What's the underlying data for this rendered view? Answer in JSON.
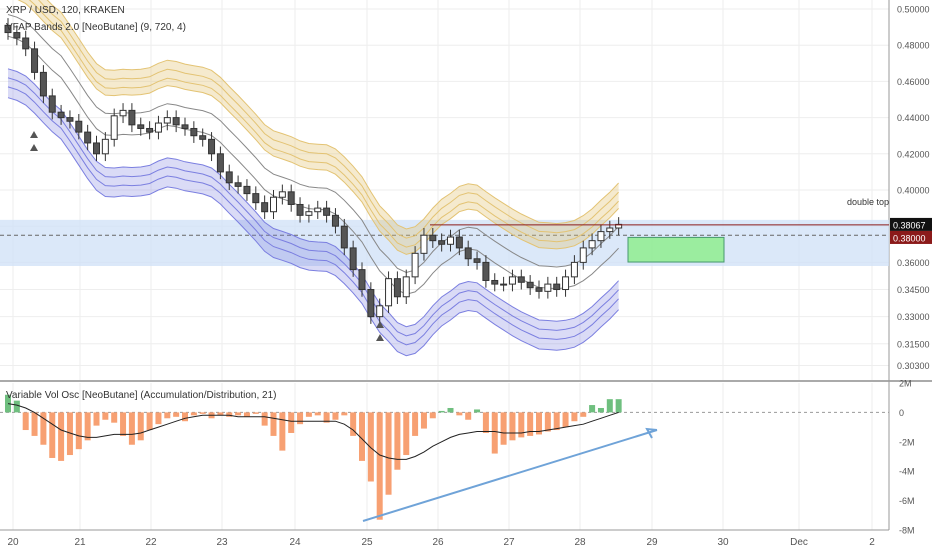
{
  "header": {
    "symbol_line": "XRP / USD, 120, KRAKEN",
    "indicator_line": "VFAP Bands 2.0 [NeoButane] (9, 720, 4)",
    "oscillator_line": "Variable Vol Osc [NeoButane] (Accumulation/Distribution, 21)"
  },
  "colors": {
    "up": "#53b987",
    "down": "#eb4d5c",
    "candle_body_down": "#555555",
    "upper_band": "#e3c373",
    "lower_band": "#7b7fe0",
    "zone": "#cfe0f7",
    "target_box": "#90ee90",
    "vol_neg": "#f7a072",
    "vol_pos": "#6fbf7f",
    "trend_line": "#6fa3d8",
    "price_line": "#8b1a1a"
  },
  "chart_data": [
    {
      "type": "candlestick",
      "title": "XRP / USD, 120, KRAKEN",
      "ylim": [
        0.295,
        0.505
      ],
      "y_ticks": [
        "0.50000",
        "0.48000",
        "0.46000",
        "0.44000",
        "0.42000",
        "0.40000",
        "0.38000",
        "0.36000",
        "0.34500",
        "0.33000",
        "0.31500",
        "0.30300"
      ],
      "x_ticks": [
        "20",
        "21",
        "22",
        "23",
        "24",
        "25",
        "26",
        "27",
        "28",
        "29",
        "30",
        "Dec",
        "2"
      ],
      "annotations": {
        "label": "double top",
        "price_label": "0.38067",
        "level_label": "0.38000"
      },
      "closes": [
        0.487,
        0.484,
        0.478,
        0.465,
        0.452,
        0.443,
        0.44,
        0.438,
        0.432,
        0.426,
        0.42,
        0.428,
        0.441,
        0.444,
        0.436,
        0.434,
        0.432,
        0.437,
        0.44,
        0.436,
        0.434,
        0.43,
        0.428,
        0.42,
        0.41,
        0.404,
        0.402,
        0.398,
        0.393,
        0.388,
        0.396,
        0.399,
        0.392,
        0.386,
        0.388,
        0.39,
        0.386,
        0.38,
        0.368,
        0.356,
        0.345,
        0.33,
        0.336,
        0.351,
        0.341,
        0.352,
        0.365,
        0.375,
        0.372,
        0.37,
        0.374,
        0.368,
        0.362,
        0.36,
        0.35,
        0.348,
        0.348,
        0.352,
        0.349,
        0.346,
        0.344,
        0.348,
        0.345,
        0.352,
        0.36,
        0.368,
        0.372,
        0.377,
        0.379,
        0.381
      ]
    },
    {
      "type": "bar",
      "title": "Variable Vol Osc [NeoButane] (Accumulation/Distribution, 21)",
      "ylim": [
        -8,
        2
      ],
      "y_ticks": [
        "2M",
        "0",
        "-2M",
        "-4M",
        "-6M",
        "-8M"
      ],
      "values": [
        1.2,
        0.8,
        -1.2,
        -1.6,
        -2.2,
        -3.1,
        -3.3,
        -2.9,
        -2.5,
        -1.9,
        -0.9,
        -0.5,
        -0.7,
        -1.6,
        -2.2,
        -1.9,
        -1.2,
        -0.8,
        -0.4,
        -0.3,
        -0.6,
        -0.2,
        -0.1,
        -0.4,
        -0.2,
        -0.3,
        -0.2,
        -0.3,
        -0.1,
        -0.9,
        -1.6,
        -2.6,
        -1.4,
        -0.8,
        -0.3,
        -0.2,
        -0.7,
        -0.5,
        -0.2,
        -1.6,
        -3.3,
        -4.7,
        -7.3,
        -5.6,
        -3.9,
        -2.9,
        -1.6,
        -1.1,
        -0.4,
        0.1,
        0.3,
        -0.2,
        -0.5,
        0.2,
        -1.4,
        -2.8,
        -2.2,
        -1.9,
        -1.7,
        -1.6,
        -1.5,
        -1.3,
        -1.2,
        -1.0,
        -0.6,
        -0.3,
        0.5,
        0.3,
        0.9,
        0.9
      ],
      "signal": [
        0.6,
        0.5,
        0.3,
        0.0,
        -0.4,
        -0.8,
        -1.2,
        -1.4,
        -1.6,
        -1.7,
        -1.7,
        -1.6,
        -1.5,
        -1.5,
        -1.5,
        -1.4,
        -1.2,
        -1.0,
        -0.8,
        -0.6,
        -0.4,
        -0.3,
        -0.2,
        -0.2,
        -0.2,
        -0.2,
        -0.3,
        -0.3,
        -0.3,
        -0.3,
        -0.4,
        -0.5,
        -0.6,
        -0.6,
        -0.6,
        -0.6,
        -0.6,
        -0.6,
        -0.8,
        -1.2,
        -1.8,
        -2.4,
        -2.9,
        -3.1,
        -3.2,
        -3.2,
        -3.0,
        -2.7,
        -2.3,
        -2.0,
        -1.7,
        -1.5,
        -1.4,
        -1.3,
        -1.3,
        -1.3,
        -1.4,
        -1.4,
        -1.4,
        -1.3,
        -1.3,
        -1.2,
        -1.1,
        -1.0,
        -0.9,
        -0.8,
        -0.6,
        -0.4,
        -0.2,
        0.0
      ]
    }
  ]
}
